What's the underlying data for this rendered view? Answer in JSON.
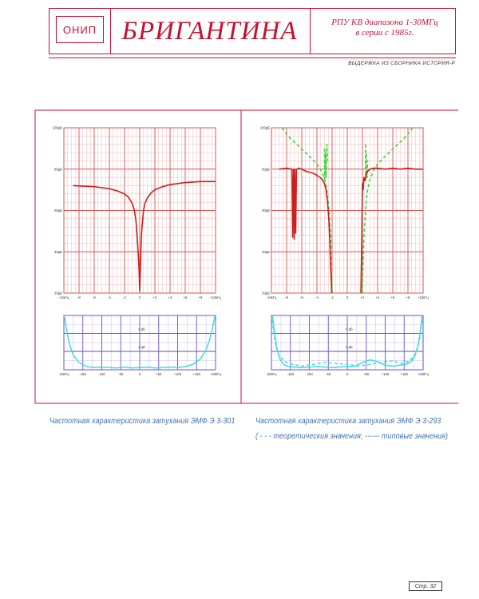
{
  "header": {
    "logo_text": "ОНИП",
    "title": "БРИГАНТИНА",
    "subtitle_line1": "РПУ КВ диапазона 1-30МГц",
    "subtitle_line2": "в серии с 1985г."
  },
  "source_note": "ВЫДЕРЖКА ИЗ СБОРНИКА ИСТОРИЯ-Р",
  "captions": {
    "left": "Частотная  характеристика  затухания   ЭМФ  Э 3-301",
    "right_line1": "Частотная  характеристика  затухания   ЭМФ  Э 3-293",
    "right_line2": "( - - -  теоретическия значения; ------ типовые значения)"
  },
  "page_number": "Стр. 32",
  "colors": {
    "accent": "#c8102e",
    "grid": "#e05050",
    "curve_typical": "#cc1f1f",
    "curve_theory": "#38d838",
    "curve_bottom": "#40dcdc",
    "grid_bottom": "#6a4fd6",
    "caption": "#3a6fb0"
  },
  "chart_data": [
    {
      "type": "line",
      "title": "",
      "ylabel": "",
      "xlabel": "",
      "xlim": [
        -10,
        10
      ],
      "ylim": [
        20,
        100
      ],
      "y_ticks": [
        "20дБ",
        "40дБ",
        "60дБ",
        "80дБ",
        "100дБ"
      ],
      "x_ticks": [
        "-10кГц",
        "-8",
        "-6",
        "-4",
        "-2",
        "0",
        "+2",
        "+4",
        "+6",
        "+8",
        "+10кГц"
      ],
      "series": [
        {
          "color": "#cc1f1f",
          "x": [
            -8.8,
            -6,
            -4,
            -3,
            -2,
            -1.5,
            -1,
            -0.7,
            -0.5,
            -0.3,
            -0.1,
            0,
            0.1,
            0.2,
            0.3,
            0.5,
            0.7,
            1,
            1.5,
            2,
            3,
            4,
            6,
            8,
            10
          ],
          "y": [
            72,
            71.5,
            70.5,
            69.5,
            68,
            66.5,
            63.5,
            60,
            55,
            46,
            32,
            21,
            32,
            46,
            52,
            60,
            63.5,
            66,
            68.5,
            70,
            71.5,
            72.5,
            73.5,
            74,
            74
          ]
        }
      ]
    },
    {
      "type": "line",
      "title": "",
      "xlabel": "",
      "ylabel": "",
      "xlim": [
        -200,
        200
      ],
      "ylim": [
        0,
        6
      ],
      "y_ticks": [
        "4 дБ",
        "2 дБ"
      ],
      "x_ticks": [
        "-200Гц",
        "-150",
        "-100",
        "-50",
        "0",
        "+50",
        "+100",
        "+150",
        "+200Гц"
      ],
      "series": [
        {
          "color": "#40dcdc",
          "x": [
            -198,
            -192,
            -185,
            -175,
            -160,
            -140,
            -120,
            -100,
            -80,
            -60,
            -40,
            -20,
            0,
            20,
            40,
            60,
            80,
            100,
            120,
            140,
            160,
            175,
            185,
            192,
            198
          ],
          "y": [
            5.8,
            4.2,
            2.8,
            1.6,
            0.8,
            0.35,
            0.25,
            0.3,
            0.25,
            0.2,
            0.3,
            0.2,
            0.25,
            0.3,
            0.2,
            0.25,
            0.3,
            0.25,
            0.35,
            0.6,
            1.2,
            2.2,
            3.4,
            4.6,
            5.9
          ]
        }
      ]
    },
    {
      "type": "line",
      "title": "",
      "xlabel": "",
      "ylabel": "",
      "xlim": [
        -10,
        10
      ],
      "ylim": [
        20,
        100
      ],
      "y_ticks": [
        "20дБ",
        "40дБ",
        "60дБ",
        "80дБ",
        "100дБ"
      ],
      "x_ticks": [
        "-10кГц",
        "-8",
        "-6",
        "-4",
        "-2",
        "0",
        "+2",
        "+4",
        "+6",
        "+8",
        "+10кГц"
      ],
      "series": [
        {
          "name": "теоретическия значения",
          "color": "#38d838",
          "dash": "4,3",
          "segments": [
            {
              "x": [
                -8.6,
                -7.8,
                -6.8,
                -5.8,
                -4.8,
                -4.0,
                -3.4,
                -2.9,
                -2.6,
                -2.4,
                -2.2,
                -2.05,
                -2.0
              ],
              "y": [
                100,
                96,
                92.5,
                89,
                85.5,
                82.5,
                79,
                74,
                68,
                60,
                48,
                30,
                20
              ]
            },
            {
              "x": [
                2.0,
                2.05,
                2.2,
                2.4,
                2.6,
                2.9,
                3.4,
                4.0,
                4.8,
                5.8,
                6.8,
                7.8,
                8.6
              ],
              "y": [
                20,
                30,
                48,
                60,
                68,
                74,
                79,
                82.5,
                85.5,
                89,
                92.5,
                96,
                100
              ]
            },
            {
              "x": [
                -3.0,
                -3.0,
                -2.9,
                -2.8,
                -2.7,
                -2.6
              ],
              "y": [
                90,
                74,
                88,
                76,
                92,
                84
              ]
            },
            {
              "x": [
                2.4,
                2.4,
                2.5,
                2.6,
                2.7
              ],
              "y": [
                92,
                74,
                88,
                76,
                84
              ]
            }
          ]
        },
        {
          "name": "типовые значения",
          "color": "#cc1f1f",
          "segments": [
            {
              "x": [
                -9.0,
                -8.0,
                -7.3,
                -7.2,
                -7.1,
                -7.0,
                -6.9,
                -6.8,
                -6.7,
                -6.6,
                -6.4,
                -6.0,
                -5.5,
                -5.0,
                -4.5,
                -4.0,
                -3.6,
                -3.3,
                -3.0,
                -2.8,
                -2.6,
                -2.4,
                -2.3,
                -2.2,
                -2.1,
                -2.05
              ],
              "y": [
                80,
                80.5,
                80,
                47,
                80,
                46,
                80,
                49,
                80,
                80,
                80.5,
                80,
                79,
                78.5,
                78,
                77,
                76,
                75,
                73,
                70,
                64,
                54,
                45,
                33,
                25,
                20
              ]
            },
            {
              "x": [
                1.8,
                1.9,
                2.0,
                2.1,
                2.2,
                2.3,
                2.5,
                2.7,
                3.0,
                3.5,
                4.0,
                5.0,
                6.0,
                7.0,
                8.0,
                9.0,
                10.0
              ],
              "y": [
                20,
                45,
                73,
                70,
                76,
                74.5,
                77,
                79,
                80,
                80.5,
                80.5,
                80,
                80.5,
                80,
                80.5,
                80,
                80
              ]
            }
          ]
        }
      ]
    },
    {
      "type": "line",
      "title": "",
      "xlabel": "",
      "ylabel": "",
      "xlim": [
        -200,
        200
      ],
      "ylim": [
        0,
        6
      ],
      "y_ticks": [
        "4 дБ",
        "2 дБ"
      ],
      "x_ticks": [
        "-200Гц",
        "-150",
        "-100",
        "-50",
        "0",
        "+50",
        "+100",
        "+150",
        "+200Гц"
      ],
      "series": [
        {
          "name": "теоретическия значения",
          "color": "#40dcdc",
          "dash": "4,3",
          "x": [
            -198,
            -190,
            -180,
            -165,
            -145,
            -120,
            -90,
            -60,
            -30,
            0,
            30,
            60,
            90,
            120,
            145,
            165,
            180,
            190,
            198
          ],
          "y": [
            5.5,
            3.0,
            1.6,
            0.9,
            0.6,
            0.4,
            0.6,
            0.8,
            0.7,
            0.6,
            0.4,
            0.6,
            0.8,
            1.0,
            0.7,
            1.0,
            1.8,
            3.2,
            5.8
          ]
        },
        {
          "name": "типовые значения",
          "color": "#40dcdc",
          "x": [
            -197,
            -192,
            -186,
            -178,
            -168,
            -155,
            -140,
            -120,
            -100,
            -80,
            -60,
            -40,
            -20,
            0,
            20,
            40,
            60,
            80,
            100,
            120,
            140,
            155,
            168,
            178,
            186,
            192,
            197
          ],
          "y": [
            5.9,
            4.2,
            2.4,
            1.2,
            0.6,
            0.35,
            0.3,
            0.25,
            0.3,
            0.35,
            0.3,
            0.25,
            0.3,
            0.35,
            0.4,
            0.8,
            1.1,
            0.9,
            0.5,
            0.4,
            0.5,
            0.6,
            0.9,
            1.5,
            2.6,
            4.0,
            5.9
          ]
        }
      ]
    }
  ]
}
